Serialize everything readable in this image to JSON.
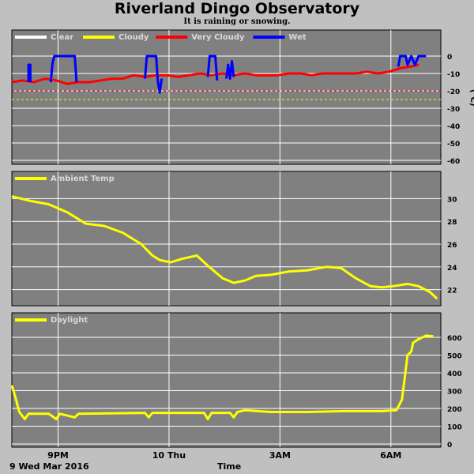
{
  "title": "Riverland Dingo Observatory",
  "subtitle": "It is raining or snowing.",
  "date_label": "9 Wed Mar 2016",
  "time_label": "Time",
  "colors": {
    "panel_bg": "#808080",
    "page_bg": "#c0c0c0",
    "grid": "#ffffff",
    "clear": "#ffffff",
    "cloudy": "#ffff00",
    "very_cloudy": "#ff0000",
    "wet": "#0000ff",
    "threshold_red": "#ff0000",
    "threshold_yellow": "#ffff00"
  },
  "chart_data": [
    {
      "id": "sky",
      "type": "line",
      "ylabel": "(°C)",
      "ylim": [
        -60,
        5
      ],
      "y_ticks": [
        0,
        -10,
        -20,
        -30,
        -40,
        -50,
        -60
      ],
      "x_ticks": [
        "9PM",
        "10 Thu",
        "3AM",
        "6AM"
      ],
      "grid": true,
      "legend": [
        {
          "name": "Clear",
          "color": "#ffffff"
        },
        {
          "name": "Cloudy",
          "color": "#ffff00"
        },
        {
          "name": "Very Cloudy",
          "color": "#ff0000"
        },
        {
          "name": "Wet",
          "color": "#0000ff"
        }
      ],
      "thresholds": [
        {
          "value": -20,
          "color": "#ff0000"
        },
        {
          "value": -25,
          "color": "#ffff00"
        }
      ],
      "series": [
        {
          "name": "Very Cloudy",
          "color": "#ff0000",
          "points": [
            [
              0,
              -15
            ],
            [
              0.3,
              -14
            ],
            [
              0.6,
              -15
            ],
            [
              0.9,
              -13
            ],
            [
              1.2,
              -14
            ],
            [
              1.5,
              -16
            ],
            [
              1.8,
              -15
            ],
            [
              2.1,
              -15
            ],
            [
              2.4,
              -14
            ],
            [
              2.7,
              -13
            ],
            [
              3.0,
              -13
            ],
            [
              3.3,
              -11
            ],
            [
              3.6,
              -12
            ],
            [
              3.9,
              -11
            ],
            [
              4.2,
              -11
            ],
            [
              4.5,
              -12
            ],
            [
              4.8,
              -11
            ],
            [
              5.1,
              -10
            ],
            [
              5.4,
              -11
            ],
            [
              5.7,
              -10
            ],
            [
              6.0,
              -11
            ],
            [
              6.3,
              -10
            ],
            [
              6.6,
              -11
            ],
            [
              6.9,
              -11
            ],
            [
              7.2,
              -11
            ],
            [
              7.5,
              -10
            ],
            [
              7.8,
              -10
            ],
            [
              8.1,
              -11
            ],
            [
              8.4,
              -10
            ],
            [
              8.7,
              -10
            ],
            [
              9.0,
              -10
            ],
            [
              9.3,
              -10
            ],
            [
              9.6,
              -9
            ],
            [
              9.9,
              -10
            ],
            [
              10.2,
              -9
            ],
            [
              10.5,
              -7
            ],
            [
              10.8,
              -6
            ],
            [
              11.0,
              -5
            ]
          ]
        },
        {
          "name": "Wet",
          "color": "#0000ff",
          "segments": [
            [
              [
                0.45,
                -15
              ],
              [
                0.45,
                -5
              ],
              [
                0.5,
                -5
              ],
              [
                0.5,
                -15
              ]
            ],
            [
              [
                1.05,
                -15
              ],
              [
                1.1,
                -4
              ],
              [
                1.15,
                0
              ],
              [
                1.6,
                0
              ],
              [
                1.7,
                0
              ],
              [
                1.75,
                -15
              ]
            ],
            [
              [
                3.6,
                -13
              ],
              [
                3.65,
                0
              ],
              [
                3.9,
                0
              ],
              [
                3.95,
                -15
              ],
              [
                4.0,
                -21
              ],
              [
                4.05,
                -13
              ]
            ],
            [
              [
                5.3,
                -12
              ],
              [
                5.35,
                0
              ],
              [
                5.5,
                0
              ],
              [
                5.55,
                -14
              ]
            ],
            [
              [
                5.8,
                -13
              ],
              [
                5.85,
                -5
              ],
              [
                5.9,
                -13
              ],
              [
                5.95,
                -3
              ],
              [
                6.0,
                -12
              ]
            ],
            [
              [
                10.45,
                -6
              ],
              [
                10.5,
                0
              ],
              [
                10.65,
                0
              ],
              [
                10.7,
                -5
              ],
              [
                10.8,
                0
              ],
              [
                10.9,
                -5
              ],
              [
                11.0,
                0
              ],
              [
                11.2,
                0
              ]
            ]
          ]
        }
      ]
    },
    {
      "id": "ambient",
      "type": "line",
      "ylim": [
        21,
        31
      ],
      "y_ticks": [
        30,
        28,
        26,
        24,
        22
      ],
      "x_ticks": [
        "9PM",
        "10 Thu",
        "3AM",
        "6AM"
      ],
      "grid": true,
      "legend": [
        {
          "name": "Ambient Temp",
          "color": "#ffff00"
        }
      ],
      "series": [
        {
          "name": "Ambient Temp",
          "color": "#ffff00",
          "points": [
            [
              0,
              30.2
            ],
            [
              0.5,
              29.8
            ],
            [
              1.0,
              29.5
            ],
            [
              1.5,
              28.8
            ],
            [
              2.0,
              27.8
            ],
            [
              2.5,
              27.6
            ],
            [
              3.0,
              27.0
            ],
            [
              3.5,
              26.0
            ],
            [
              3.8,
              25.0
            ],
            [
              4.0,
              24.6
            ],
            [
              4.3,
              24.4
            ],
            [
              4.6,
              24.7
            ],
            [
              5.0,
              25.0
            ],
            [
              5.3,
              24.1
            ],
            [
              5.7,
              23.0
            ],
            [
              6.0,
              22.6
            ],
            [
              6.3,
              22.8
            ],
            [
              6.6,
              23.2
            ],
            [
              7.0,
              23.3
            ],
            [
              7.5,
              23.6
            ],
            [
              8.0,
              23.7
            ],
            [
              8.5,
              24.0
            ],
            [
              8.9,
              23.9
            ],
            [
              9.3,
              23.0
            ],
            [
              9.7,
              22.3
            ],
            [
              10.0,
              22.2
            ],
            [
              10.3,
              22.3
            ],
            [
              10.7,
              22.5
            ],
            [
              11.0,
              22.3
            ],
            [
              11.3,
              21.8
            ],
            [
              11.5,
              21.2
            ]
          ]
        }
      ]
    },
    {
      "id": "daylight",
      "type": "line",
      "ylim": [
        0,
        640
      ],
      "y_ticks": [
        600,
        500,
        400,
        300,
        200,
        100,
        0
      ],
      "x_ticks": [
        "9PM",
        "10 Thu",
        "3AM",
        "6AM"
      ],
      "grid": true,
      "legend": [
        {
          "name": "Daylight",
          "color": "#ffff00"
        }
      ],
      "series": [
        {
          "name": "Daylight",
          "color": "#ffff00",
          "points": [
            [
              0,
              330
            ],
            [
              0.1,
              260
            ],
            [
              0.2,
              180
            ],
            [
              0.35,
              140
            ],
            [
              0.45,
              170
            ],
            [
              1.0,
              170
            ],
            [
              1.2,
              140
            ],
            [
              1.3,
              170
            ],
            [
              1.7,
              150
            ],
            [
              1.8,
              170
            ],
            [
              3.6,
              175
            ],
            [
              3.7,
              150
            ],
            [
              3.8,
              175
            ],
            [
              5.2,
              175
            ],
            [
              5.3,
              140
            ],
            [
              5.4,
              175
            ],
            [
              5.9,
              175
            ],
            [
              6.0,
              150
            ],
            [
              6.1,
              180
            ],
            [
              6.3,
              190
            ],
            [
              7.0,
              180
            ],
            [
              8.0,
              180
            ],
            [
              9.0,
              185
            ],
            [
              10.0,
              185
            ],
            [
              10.4,
              190
            ],
            [
              10.55,
              250
            ],
            [
              10.7,
              500
            ],
            [
              10.8,
              520
            ],
            [
              10.85,
              570
            ],
            [
              11.0,
              590
            ],
            [
              11.2,
              610
            ],
            [
              11.4,
              605
            ]
          ]
        }
      ]
    }
  ]
}
